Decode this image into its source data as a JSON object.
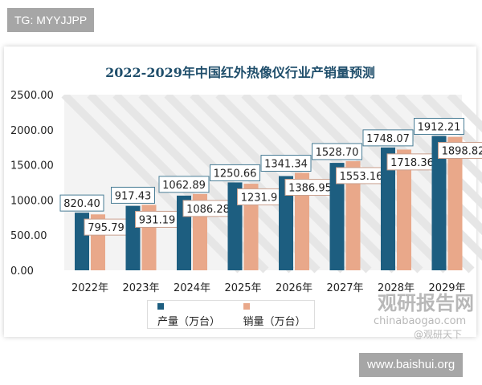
{
  "watermarks": {
    "tg": "TG: MYYJJPP",
    "site": "www.baishui.org",
    "brand_cn": "观研报告网",
    "brand_en": "chinabaogao.com",
    "weibo": "@观研天下"
  },
  "chart_data": {
    "type": "bar",
    "title": "2022-2029年中国红外热像仪行业产销量预测",
    "categories": [
      "2022年",
      "2023年",
      "2024年",
      "2025年",
      "2026年",
      "2027年",
      "2028年",
      "2029年"
    ],
    "series": [
      {
        "name": "产量（万台）",
        "color": "#1d5e80",
        "values": [
          820.4,
          917.43,
          1062.89,
          1250.66,
          1341.34,
          1528.7,
          1748.07,
          1912.21
        ],
        "labels": [
          "820.40",
          "917.43",
          "1062.89",
          "1250.66",
          "1341.34",
          "1528.70",
          "1748.07",
          "1912.21"
        ]
      },
      {
        "name": "销量（万台）",
        "color": "#e9a88a",
        "values": [
          795.79,
          931.19,
          1086.28,
          1231.9,
          1386.95,
          1553.16,
          1718.36,
          1898.82
        ],
        "labels": [
          "795.79",
          "931.19",
          "1086.28",
          "1231.9",
          "1386.95",
          "1553.16",
          "1718.36",
          "1898.82"
        ]
      }
    ],
    "ylim": [
      0,
      2500
    ],
    "yticks": [
      "0.00",
      "500.00",
      "1000.00",
      "1500.00",
      "2000.00",
      "2500.00"
    ],
    "legend": "bottom",
    "grid": false
  }
}
